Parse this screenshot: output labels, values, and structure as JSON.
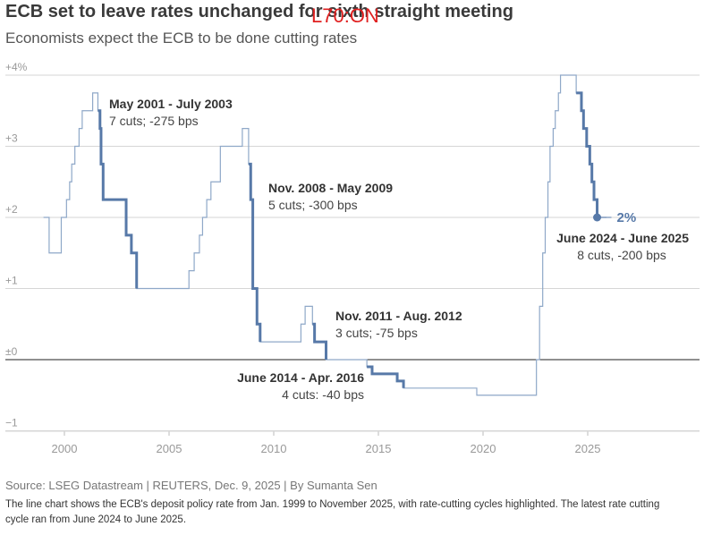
{
  "header": {
    "title": "ECB set to leave rates unchanged for sixth straight meeting",
    "overlay_text": "L70:ON",
    "subtitle": "Economists expect the ECB to be done cutting rates"
  },
  "footer": {
    "source": "Source: LSEG Datastream | REUTERS, Dec. 9, 2025 | By Sumanta Sen",
    "caption": "The line chart shows the ECB's deposit policy rate from Jan. 1999 to November 2025, with rate-cutting cycles highlighted. The latest rate cutting cycle ran from June 2024 to June 2025."
  },
  "colors": {
    "line": "#8fa8c8",
    "highlight": "#5779a8",
    "grid": "#d6d6d6",
    "axis": "#222222",
    "label": "#999999"
  },
  "chart_data": {
    "type": "line",
    "title": "ECB set to leave rates unchanged for sixth straight meeting",
    "subtitle": "Economists expect the ECB to be done cutting rates",
    "xlabel": "",
    "ylabel": "",
    "xlim": [
      1998,
      2030
    ],
    "ylim": [
      -1.2,
      4.1
    ],
    "yticks": [
      {
        "value": 4,
        "label": "+4%"
      },
      {
        "value": 3,
        "label": "+3"
      },
      {
        "value": 2,
        "label": "+2"
      },
      {
        "value": 1,
        "label": "+1"
      },
      {
        "value": 0,
        "label": "±0"
      },
      {
        "value": -1,
        "label": "−1"
      }
    ],
    "xticks": [
      {
        "value": 2000,
        "label": "2000"
      },
      {
        "value": 2005,
        "label": "2005"
      },
      {
        "value": 2010,
        "label": "2010"
      },
      {
        "value": 2015,
        "label": "2015"
      },
      {
        "value": 2020,
        "label": "2020"
      },
      {
        "value": 2025,
        "label": "2025"
      }
    ],
    "series": [
      {
        "name": "ECB deposit rate",
        "step_points": [
          [
            1999.0,
            2.0
          ],
          [
            1999.27,
            1.5
          ],
          [
            1999.85,
            2.0
          ],
          [
            2000.1,
            2.25
          ],
          [
            2000.25,
            2.5
          ],
          [
            2000.35,
            2.75
          ],
          [
            2000.5,
            3.0
          ],
          [
            2000.7,
            3.25
          ],
          [
            2000.85,
            3.5
          ],
          [
            2001.35,
            3.75
          ],
          [
            2001.6,
            3.5
          ],
          [
            2001.7,
            3.25
          ],
          [
            2001.75,
            2.75
          ],
          [
            2001.85,
            2.25
          ],
          [
            2002.95,
            1.75
          ],
          [
            2003.2,
            1.5
          ],
          [
            2003.45,
            1.0
          ],
          [
            2005.95,
            1.25
          ],
          [
            2006.2,
            1.5
          ],
          [
            2006.45,
            1.75
          ],
          [
            2006.6,
            2.0
          ],
          [
            2006.8,
            2.25
          ],
          [
            2007.0,
            2.5
          ],
          [
            2007.45,
            3.0
          ],
          [
            2008.5,
            3.25
          ],
          [
            2008.8,
            2.75
          ],
          [
            2008.9,
            2.25
          ],
          [
            2009.0,
            1.0
          ],
          [
            2009.2,
            0.5
          ],
          [
            2009.35,
            0.25
          ],
          [
            2011.3,
            0.5
          ],
          [
            2011.5,
            0.75
          ],
          [
            2011.85,
            0.5
          ],
          [
            2011.95,
            0.25
          ],
          [
            2012.5,
            0.0
          ],
          [
            2014.45,
            -0.1
          ],
          [
            2014.7,
            -0.2
          ],
          [
            2015.9,
            -0.3
          ],
          [
            2016.2,
            -0.4
          ],
          [
            2019.7,
            -0.5
          ],
          [
            2022.55,
            0.0
          ],
          [
            2022.7,
            0.75
          ],
          [
            2022.85,
            1.5
          ],
          [
            2022.97,
            2.0
          ],
          [
            2023.1,
            2.5
          ],
          [
            2023.2,
            3.0
          ],
          [
            2023.35,
            3.25
          ],
          [
            2023.45,
            3.5
          ],
          [
            2023.6,
            3.75
          ],
          [
            2023.7,
            4.0
          ],
          [
            2024.45,
            3.75
          ],
          [
            2024.7,
            3.5
          ],
          [
            2024.8,
            3.25
          ],
          [
            2024.95,
            3.0
          ],
          [
            2025.1,
            2.75
          ],
          [
            2025.2,
            2.5
          ],
          [
            2025.3,
            2.25
          ],
          [
            2025.45,
            2.0
          ],
          [
            2025.9,
            2.0
          ]
        ]
      }
    ],
    "highlights": [
      {
        "x_start": 2001.6,
        "x_end": 2003.45,
        "title": "May 2001 - July 2003",
        "detail": "7 cuts; -275 bps"
      },
      {
        "x_start": 2008.8,
        "x_end": 2009.35,
        "title": "Nov. 2008 - May 2009",
        "detail": "5 cuts; -300 bps"
      },
      {
        "x_start": 2011.85,
        "x_end": 2012.5,
        "title": "Nov. 2011 - Aug. 2012",
        "detail": "3 cuts; -75 bps"
      },
      {
        "x_start": 2014.45,
        "x_end": 2016.2,
        "title": "June 2014 - Apr. 2016",
        "detail": "4 cuts: -40 bps"
      },
      {
        "x_start": 2024.45,
        "x_end": 2025.45,
        "title": "June 2024 - June 2025",
        "detail": "8 cuts, -200 bps"
      }
    ],
    "latest": {
      "x": 2025.45,
      "y": 2.0,
      "label": "2%"
    }
  }
}
